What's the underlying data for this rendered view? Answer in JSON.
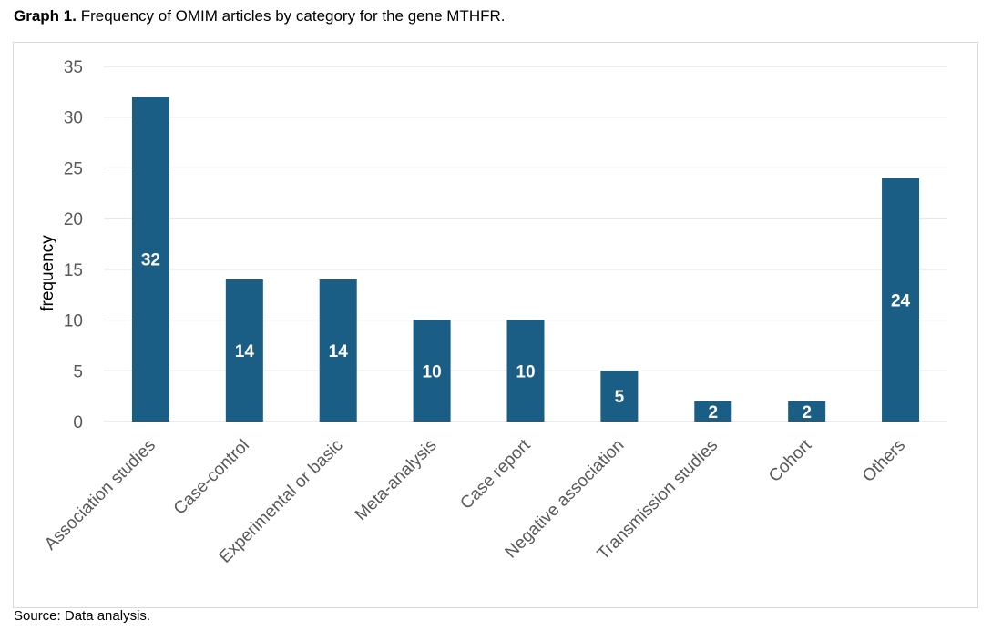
{
  "caption": {
    "label": "Graph 1.",
    "text": "Frequency of OMIM articles by category for the gene MTHFR."
  },
  "source": "Source: Data analysis.",
  "colors": {
    "bar": "#1a5e85",
    "grid": "#d9d9d9",
    "label": "#ffffff"
  },
  "chart_data": {
    "type": "bar",
    "title": "",
    "xlabel": "",
    "ylabel": "frequency",
    "ylim": [
      0,
      35
    ],
    "yticks": [
      0,
      5,
      10,
      15,
      20,
      25,
      30,
      35
    ],
    "grid": true,
    "legend": "none",
    "categories": [
      "Association studies",
      "Case-control",
      "Experimental or basic",
      "Meta-analysis",
      "Case report",
      "Negative association",
      "Transmission studies",
      "Cohort",
      "Others"
    ],
    "values": [
      32,
      14,
      14,
      10,
      10,
      5,
      2,
      2,
      24
    ],
    "data_labels": [
      "32",
      "14",
      "14",
      "10",
      "10",
      "5",
      "2",
      "2",
      "24"
    ]
  }
}
